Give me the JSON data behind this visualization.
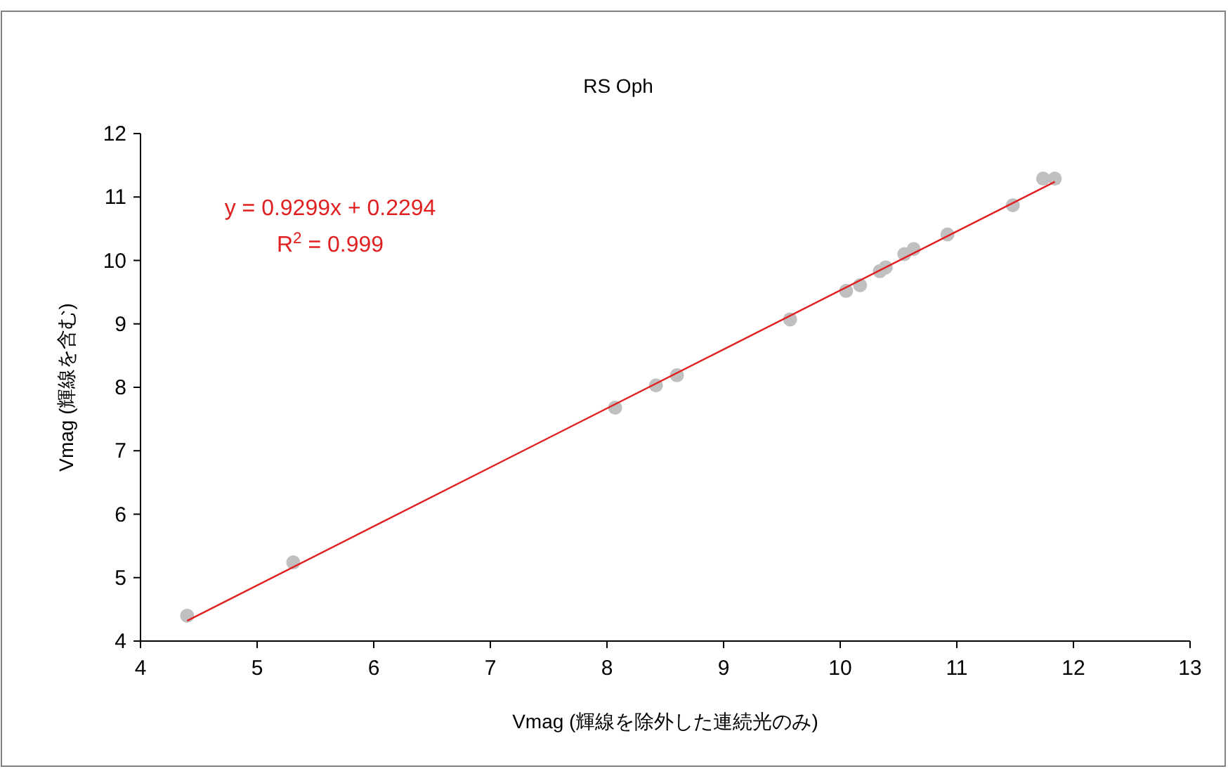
{
  "chart_data": {
    "type": "scatter",
    "title": "RS Oph",
    "xlabel": "Vmag (輝線を除外した連続光のみ)",
    "ylabel": "Vmag (輝線を含む)",
    "annotations": [
      "y = 0.9299x + 0.2294",
      "R$^{2}$ = 0.999"
    ],
    "series": [
      {
        "marker": "circle",
        "color": "#c0c0c0",
        "x": [
          4.4,
          5.31,
          8.07,
          8.42,
          8.6,
          9.57,
          10.05,
          10.17,
          10.34,
          10.39,
          10.55,
          10.63,
          10.92,
          11.48,
          11.74,
          11.84
        ],
        "values": [
          4.4,
          5.24,
          7.68,
          8.03,
          8.19,
          9.07,
          9.52,
          9.61,
          9.83,
          9.89,
          10.1,
          10.18,
          10.41,
          10.87,
          11.29,
          11.29
        ]
      },
      {
        "type": "line",
        "marker": "none",
        "color": "#e02020",
        "x": [
          4.4,
          11.84
        ],
        "values": [
          4.32,
          11.24
        ]
      }
    ],
    "xlim": [
      4,
      13
    ],
    "xticks": [
      4,
      5,
      6,
      7,
      8,
      9,
      10,
      11,
      12,
      13
    ],
    "ylim": [
      4,
      12
    ],
    "yticks": [
      4,
      5,
      6,
      7,
      8,
      9,
      10,
      11,
      12
    ],
    "grid": false
  }
}
